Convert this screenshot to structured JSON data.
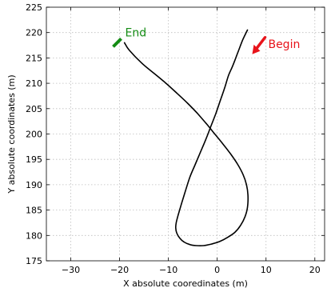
{
  "chart_data": {
    "type": "line",
    "title": "",
    "xlabel": "X absolute cooredinates (m)",
    "ylabel": "Y absolute coordinates (m)",
    "xlim": [
      -35,
      22
    ],
    "ylim": [
      175,
      225
    ],
    "xticks": [
      -30,
      -20,
      -10,
      0,
      10,
      20
    ],
    "yticks": [
      175,
      180,
      185,
      190,
      195,
      200,
      205,
      210,
      215,
      220,
      225
    ],
    "grid": true,
    "series": [
      {
        "color": "#000000",
        "x": [
          6.2,
          5.2,
          4.2,
          3.2,
          2.3,
          1.5,
          0.6,
          -0.3,
          -1.3,
          -2.3,
          -3.4,
          -4.5,
          -5.6,
          -6.6,
          -7.4,
          -8.0,
          -8.4,
          -8.5,
          -8.3,
          -7.7,
          -6.8,
          -5.6,
          -4.3,
          -2.8,
          -1.2,
          0.5,
          2.1,
          3.6,
          4.8,
          5.7,
          6.2,
          6.3,
          6.0,
          5.3,
          4.2,
          2.8,
          1.2,
          -0.5,
          -2.2,
          -4.0,
          -6.0,
          -8.2,
          -10.5,
          -13.0,
          -15.5,
          -18.0,
          -19.0
        ],
        "y": [
          220.5,
          218.5,
          216.0,
          213.5,
          211.5,
          209.0,
          206.5,
          204.0,
          201.5,
          199.0,
          196.5,
          194.0,
          191.5,
          188.5,
          186.0,
          184.0,
          182.5,
          181.5,
          180.5,
          179.5,
          178.7,
          178.2,
          178.0,
          178.0,
          178.3,
          178.8,
          179.6,
          180.6,
          182.0,
          183.7,
          185.5,
          188.0,
          190.0,
          192.0,
          194.0,
          196.0,
          198.0,
          200.0,
          202.0,
          204.0,
          206.0,
          208.0,
          210.0,
          212.0,
          214.0,
          216.5,
          218.0
        ]
      }
    ],
    "annotations": [
      {
        "text": "Begin",
        "color": "#e8141b",
        "x": 7.5,
        "y": 216.2
      },
      {
        "text": "End",
        "color": "#148c14",
        "x": -20.5,
        "y": 218.0
      }
    ]
  }
}
